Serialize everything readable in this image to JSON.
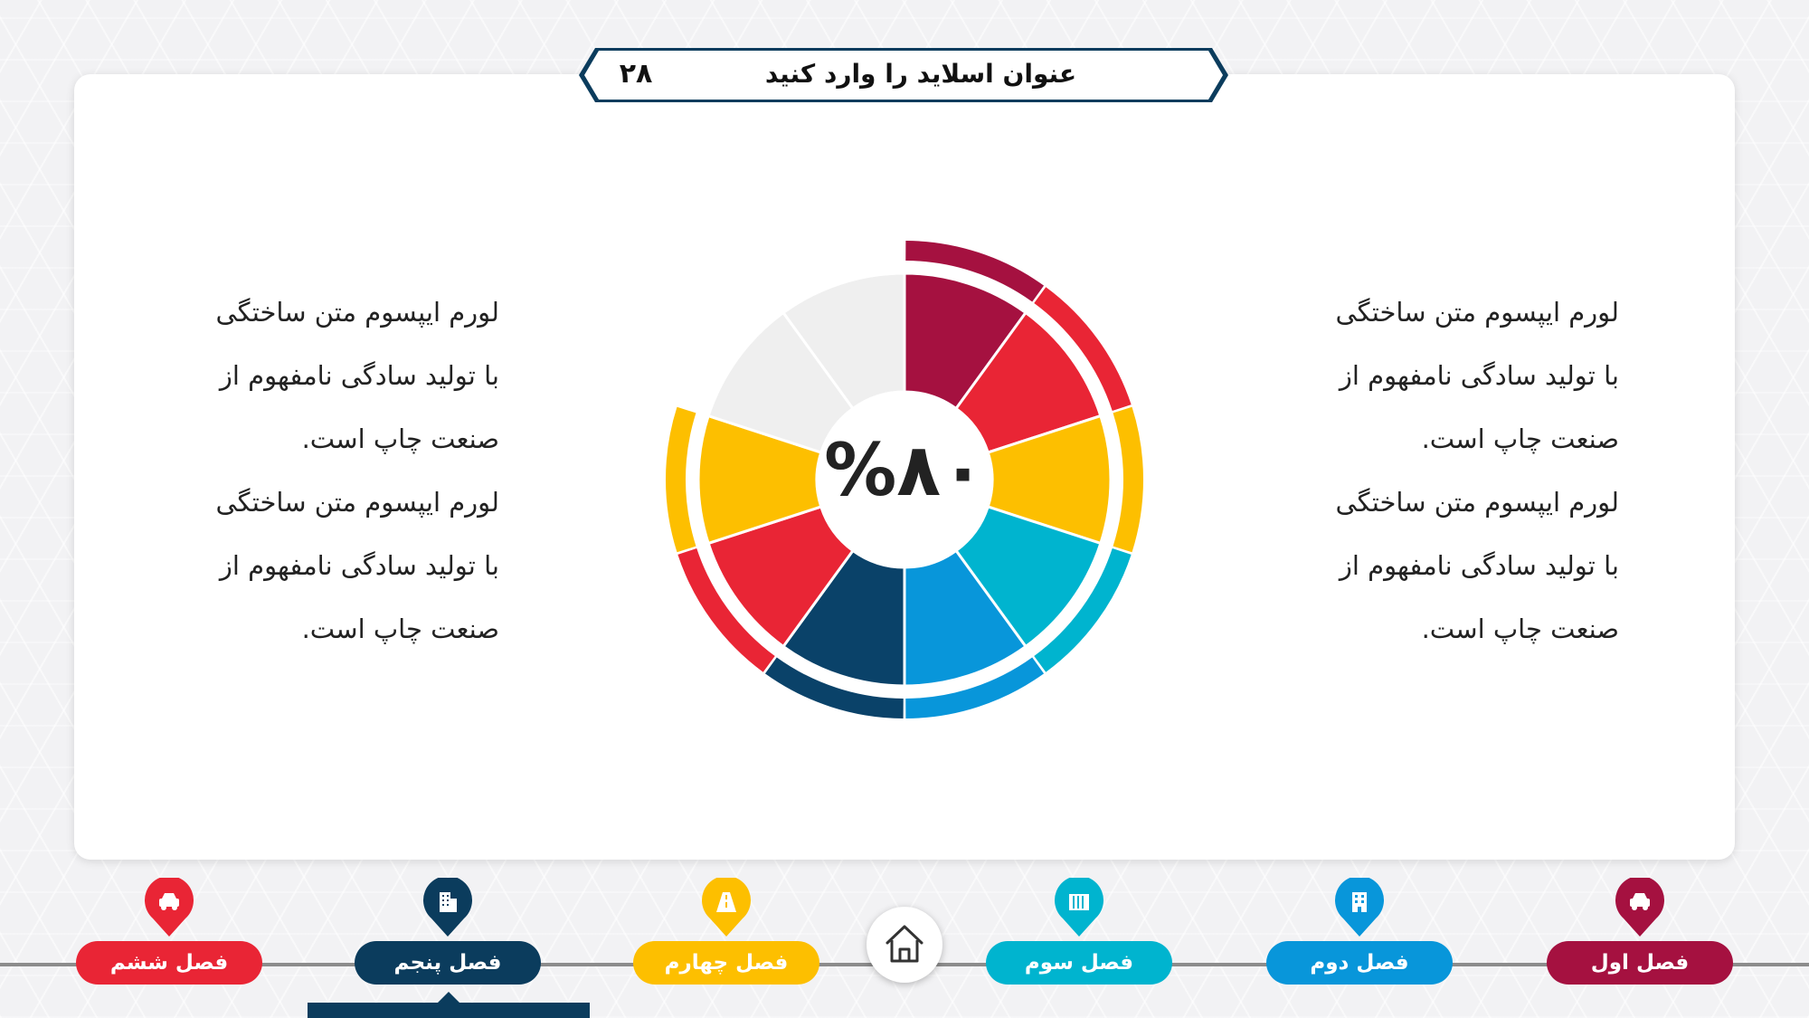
{
  "slide": {
    "title": "عنوان اسلاید را وارد کنید",
    "number": "۲۸"
  },
  "text_right": [
    "لورم ایپسوم متن ساختگی",
    "با تولید سادگی نامفهوم از",
    "صنعت چاپ است.",
    "لورم ایپسوم متن ساختگی",
    "با تولید سادگی نامفهوم از",
    "صنعت چاپ است."
  ],
  "text_left": [
    "لورم ایپسوم متن ساختگی",
    "با تولید سادگی نامفهوم از",
    "صنعت چاپ است.",
    "لورم ایپسوم متن ساختگی",
    "با تولید سادگی نامفهوم از",
    "صنعت چاپ است."
  ],
  "chart_data": {
    "type": "pie",
    "center_label": "%۸۰",
    "value_percent": 80,
    "segments_total": 10,
    "segments_filled": 8,
    "segment_colors": [
      "#a51140",
      "#e92535",
      "#fdbf00",
      "#00b4cf",
      "#0896da",
      "#0a4269",
      "#e92535",
      "#fdbf00",
      "#efefef",
      "#efefef"
    ],
    "outer_ring_colors": [
      "#a51140",
      "#e92535",
      "#fdbf00",
      "#00b4cf",
      "#0896da",
      "#0a4269",
      "#e92535",
      "#fdbf00"
    ]
  },
  "colors": {
    "maroon": "#a51140",
    "red": "#e92535",
    "yellow": "#fdbf00",
    "cyan": "#00b4cf",
    "blue": "#0896da",
    "navy": "#0b3c5d",
    "empty": "#efefef"
  },
  "nav": {
    "items": [
      {
        "label": "فصل اول",
        "icon": "car-icon",
        "color": "#a51140"
      },
      {
        "label": "فصل دوم",
        "icon": "building-icon",
        "color": "#0896da"
      },
      {
        "label": "فصل سوم",
        "icon": "columns-icon",
        "color": "#00b4cf"
      },
      {
        "label": "فصل چهارم",
        "icon": "road-icon",
        "color": "#fdbf00"
      },
      {
        "label": "فصل پنجم",
        "icon": "office-icon",
        "color": "#0b3c5d",
        "active": true
      },
      {
        "label": "فصل ششم",
        "icon": "car-icon",
        "color": "#e92535"
      }
    ],
    "home_icon": "home-icon"
  }
}
